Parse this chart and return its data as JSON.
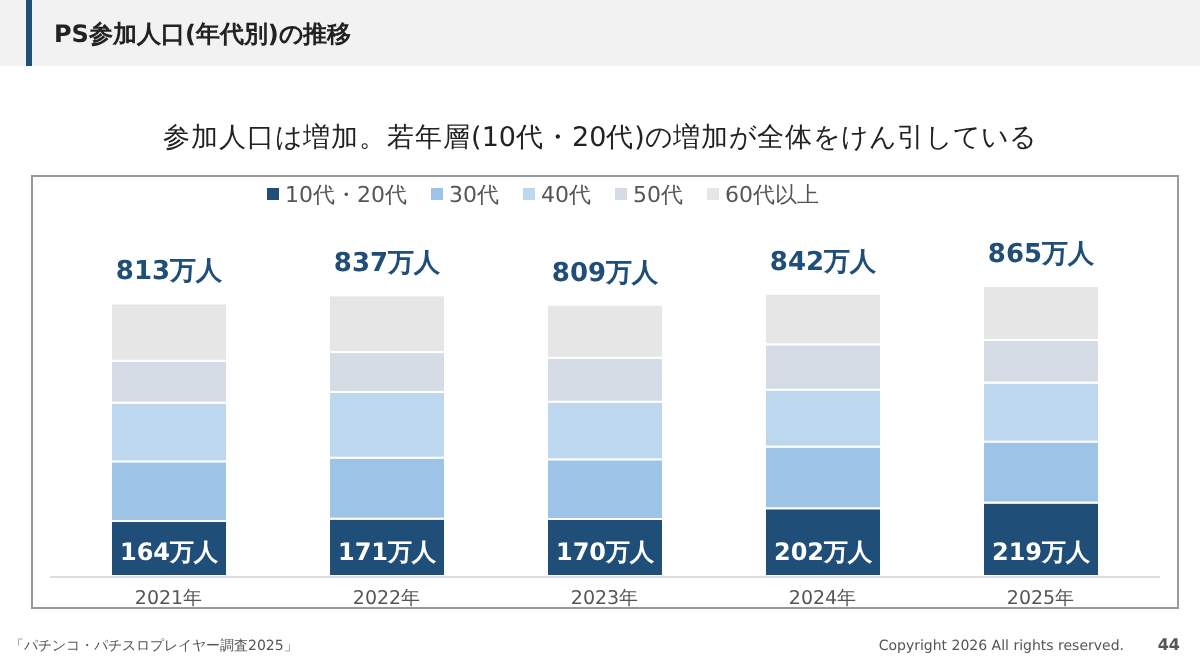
{
  "chart_data": {
    "type": "bar",
    "stacked": true,
    "title": "PS参加人口(年代別)の推移",
    "subtitle": "参加人口は増加。若年層(10代・20代)の増加が全体をけん引している",
    "categories": [
      "2021年",
      "2022年",
      "2023年",
      "2024年",
      "2025年"
    ],
    "series": [
      {
        "name": "10代・20代",
        "color": "#1f4e79",
        "values": [
          164,
          171,
          170,
          202,
          219
        ],
        "value_labels": [
          "164万人",
          "171万人",
          "170万人",
          "202万人",
          "219万人"
        ]
      },
      {
        "name": "30代",
        "color": "#9dc3e6",
        "values": [
          178,
          182,
          178,
          184,
          182
        ]
      },
      {
        "name": "40代",
        "color": "#bdd7ee",
        "values": [
          175,
          196,
          172,
          170,
          176
        ]
      },
      {
        "name": "50代",
        "color": "#d6dce5",
        "values": [
          125,
          119,
          131,
          135,
          127
        ]
      },
      {
        "name": "60代以上",
        "color": "#e7e6e6",
        "values": [
          171,
          169,
          158,
          151,
          161
        ]
      }
    ],
    "totals": [
      "813万人",
      "837万人",
      "809万人",
      "842万人",
      "865万人"
    ],
    "legend": "top",
    "annotations": [
      "「パチンコ・パチスロプレイヤー調査2025」",
      "Copyright 2026 All rights reserved.",
      "44"
    ]
  }
}
